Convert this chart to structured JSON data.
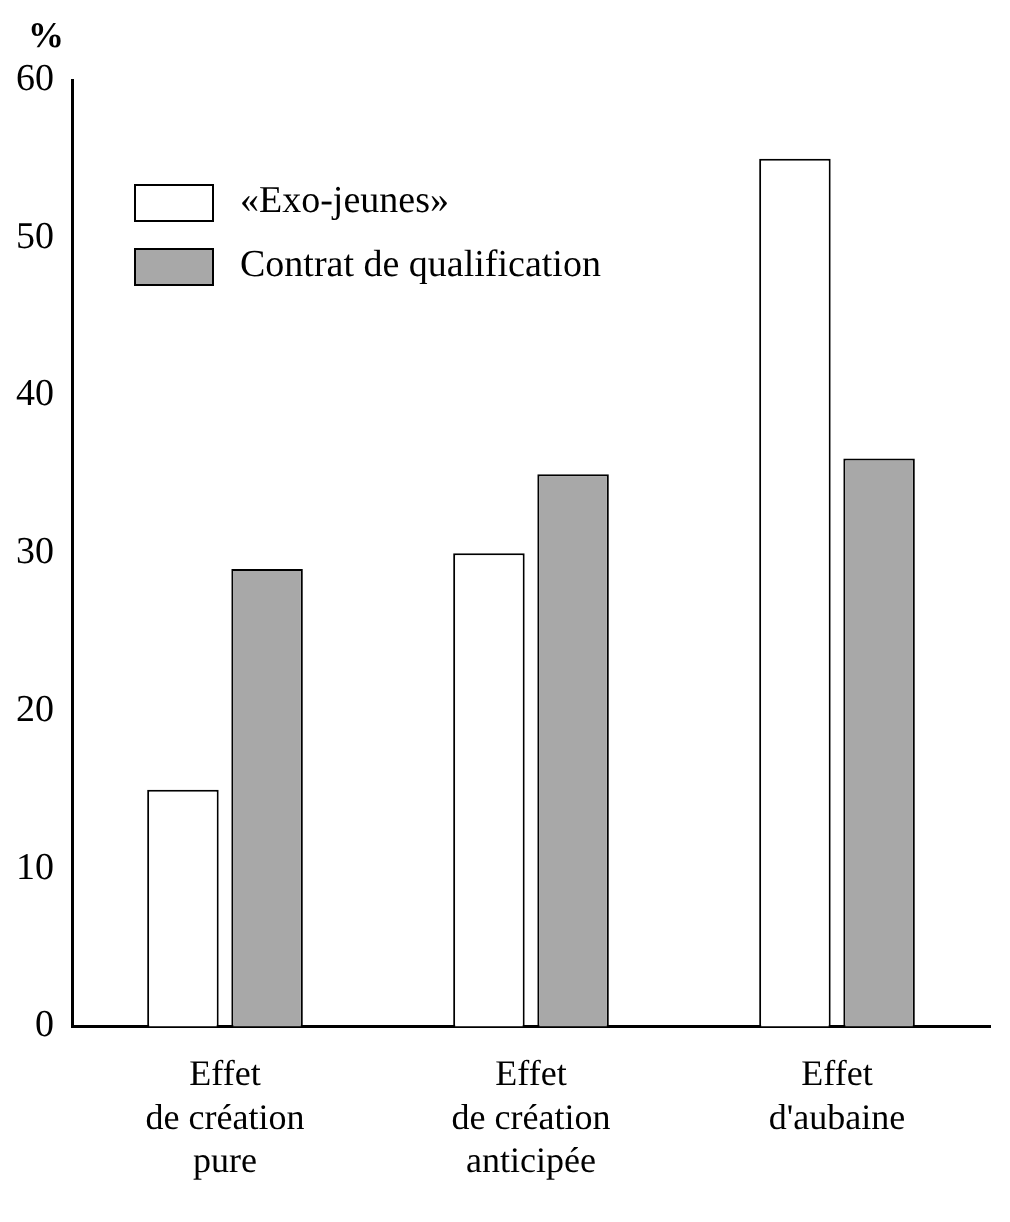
{
  "chart_data": {
    "type": "bar",
    "ylabel": "%",
    "categories": [
      "Effet\nde création\npure",
      "Effet\nde création\nanticipée",
      "Effet\nd'aubaine"
    ],
    "series": [
      {
        "name": "«Exo-jeunes»",
        "color": "#ffffff",
        "values": [
          15,
          30,
          55
        ]
      },
      {
        "name": "Contrat de qualification",
        "color": "#a8a8a8",
        "values": [
          29,
          35,
          36
        ]
      }
    ],
    "ylim": [
      0,
      60
    ],
    "yticks": [
      0,
      10,
      20,
      30,
      40,
      50,
      60
    ],
    "grid": false,
    "legend": "top left"
  }
}
